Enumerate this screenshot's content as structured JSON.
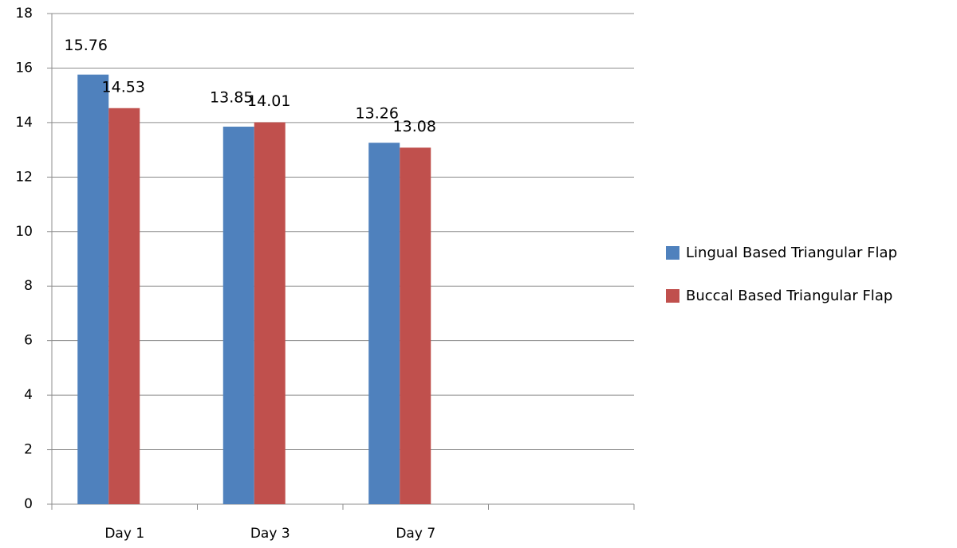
{
  "chart_data": {
    "type": "bar",
    "categories": [
      "Day 1",
      "Day 3",
      "Day 7",
      null
    ],
    "series": [
      {
        "name": "Lingual Based Triangular Flap",
        "color": "#4f81bd",
        "values": [
          15.76,
          13.85,
          13.26,
          null
        ]
      },
      {
        "name": "Buccal Based Triangular Flap",
        "color": "#c0504d",
        "values": [
          14.53,
          14.01,
          13.08,
          null
        ]
      }
    ],
    "ylim": [
      0,
      18
    ],
    "yticks": [
      0,
      2,
      4,
      6,
      8,
      10,
      12,
      14,
      16,
      18
    ],
    "grid": true,
    "legend": "right"
  }
}
